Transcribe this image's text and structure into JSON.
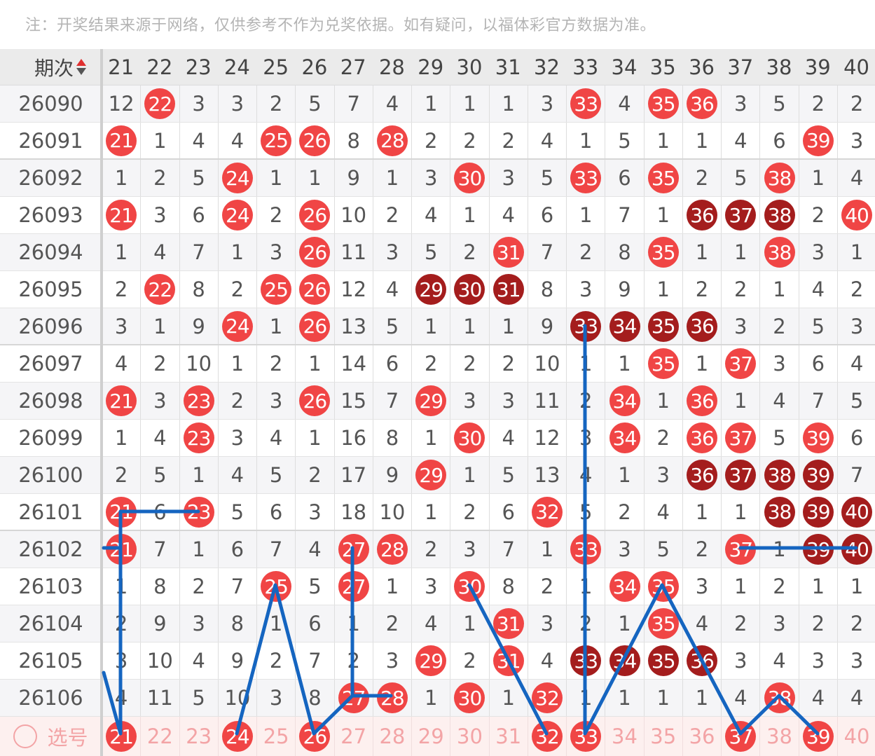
{
  "note": "注：开奖结果来源于网络，仅供参考不作为兑奖依据。如有疑问，以福体彩官方数据为准。",
  "header": {
    "issue_label": "期次",
    "sort_icon": "sort-up-down-icon",
    "columns": [
      "21",
      "22",
      "23",
      "24",
      "25",
      "26",
      "27",
      "28",
      "29",
      "30",
      "31",
      "32",
      "33",
      "34",
      "35",
      "36",
      "37",
      "38",
      "39",
      "40"
    ]
  },
  "colors": {
    "ball_red": "#f04545",
    "ball_dark": "#a41d1d",
    "annotation_line": "#1565c0",
    "select_text": "#f3a4a6"
  },
  "rows": [
    {
      "issue": "26090",
      "cells": [
        {
          "v": "12"
        },
        {
          "v": "22",
          "ball": "red"
        },
        {
          "v": "3"
        },
        {
          "v": "3"
        },
        {
          "v": "2"
        },
        {
          "v": "5"
        },
        {
          "v": "7"
        },
        {
          "v": "4"
        },
        {
          "v": "1"
        },
        {
          "v": "1"
        },
        {
          "v": "1"
        },
        {
          "v": "3"
        },
        {
          "v": "33",
          "ball": "red"
        },
        {
          "v": "4"
        },
        {
          "v": "35",
          "ball": "red"
        },
        {
          "v": "36",
          "ball": "red"
        },
        {
          "v": "3"
        },
        {
          "v": "5"
        },
        {
          "v": "2"
        },
        {
          "v": "2"
        }
      ]
    },
    {
      "issue": "26091",
      "cells": [
        {
          "v": "21",
          "ball": "red"
        },
        {
          "v": "1"
        },
        {
          "v": "4"
        },
        {
          "v": "4"
        },
        {
          "v": "25",
          "ball": "red"
        },
        {
          "v": "26",
          "ball": "red"
        },
        {
          "v": "8"
        },
        {
          "v": "28",
          "ball": "red"
        },
        {
          "v": "2"
        },
        {
          "v": "2"
        },
        {
          "v": "2"
        },
        {
          "v": "4"
        },
        {
          "v": "1"
        },
        {
          "v": "5"
        },
        {
          "v": "1"
        },
        {
          "v": "1"
        },
        {
          "v": "4"
        },
        {
          "v": "6"
        },
        {
          "v": "39",
          "ball": "red"
        },
        {
          "v": "3"
        }
      ]
    },
    {
      "issue": "26092",
      "cells": [
        {
          "v": "1"
        },
        {
          "v": "2"
        },
        {
          "v": "5"
        },
        {
          "v": "24",
          "ball": "red"
        },
        {
          "v": "1"
        },
        {
          "v": "1"
        },
        {
          "v": "9"
        },
        {
          "v": "1"
        },
        {
          "v": "3"
        },
        {
          "v": "30",
          "ball": "red"
        },
        {
          "v": "3"
        },
        {
          "v": "5"
        },
        {
          "v": "33",
          "ball": "red"
        },
        {
          "v": "6"
        },
        {
          "v": "35",
          "ball": "red"
        },
        {
          "v": "2"
        },
        {
          "v": "5"
        },
        {
          "v": "38",
          "ball": "red"
        },
        {
          "v": "1"
        },
        {
          "v": "4"
        }
      ]
    },
    {
      "issue": "26093",
      "cells": [
        {
          "v": "21",
          "ball": "red"
        },
        {
          "v": "3"
        },
        {
          "v": "6"
        },
        {
          "v": "24",
          "ball": "red"
        },
        {
          "v": "2"
        },
        {
          "v": "26",
          "ball": "red"
        },
        {
          "v": "10"
        },
        {
          "v": "2"
        },
        {
          "v": "4"
        },
        {
          "v": "1"
        },
        {
          "v": "4"
        },
        {
          "v": "6"
        },
        {
          "v": "1"
        },
        {
          "v": "7"
        },
        {
          "v": "1"
        },
        {
          "v": "36",
          "ball": "dark"
        },
        {
          "v": "37",
          "ball": "dark"
        },
        {
          "v": "38",
          "ball": "dark"
        },
        {
          "v": "2"
        },
        {
          "v": "40",
          "ball": "red"
        }
      ]
    },
    {
      "issue": "26094",
      "cells": [
        {
          "v": "1"
        },
        {
          "v": "4"
        },
        {
          "v": "7"
        },
        {
          "v": "1"
        },
        {
          "v": "3"
        },
        {
          "v": "26",
          "ball": "red"
        },
        {
          "v": "11"
        },
        {
          "v": "3"
        },
        {
          "v": "5"
        },
        {
          "v": "2"
        },
        {
          "v": "31",
          "ball": "red"
        },
        {
          "v": "7"
        },
        {
          "v": "2"
        },
        {
          "v": "8"
        },
        {
          "v": "35",
          "ball": "red"
        },
        {
          "v": "1"
        },
        {
          "v": "1"
        },
        {
          "v": "38",
          "ball": "red"
        },
        {
          "v": "3"
        },
        {
          "v": "1"
        }
      ]
    },
    {
      "issue": "26095",
      "cells": [
        {
          "v": "2"
        },
        {
          "v": "22",
          "ball": "red"
        },
        {
          "v": "8"
        },
        {
          "v": "2"
        },
        {
          "v": "25",
          "ball": "red"
        },
        {
          "v": "26",
          "ball": "red"
        },
        {
          "v": "12"
        },
        {
          "v": "4"
        },
        {
          "v": "29",
          "ball": "dark"
        },
        {
          "v": "30",
          "ball": "dark"
        },
        {
          "v": "31",
          "ball": "dark"
        },
        {
          "v": "8"
        },
        {
          "v": "3"
        },
        {
          "v": "9"
        },
        {
          "v": "1"
        },
        {
          "v": "2"
        },
        {
          "v": "2"
        },
        {
          "v": "1"
        },
        {
          "v": "4"
        },
        {
          "v": "2"
        }
      ]
    },
    {
      "issue": "26096",
      "cells": [
        {
          "v": "3"
        },
        {
          "v": "1"
        },
        {
          "v": "9"
        },
        {
          "v": "24",
          "ball": "red"
        },
        {
          "v": "1"
        },
        {
          "v": "26",
          "ball": "red"
        },
        {
          "v": "13"
        },
        {
          "v": "5"
        },
        {
          "v": "1"
        },
        {
          "v": "1"
        },
        {
          "v": "1"
        },
        {
          "v": "9"
        },
        {
          "v": "33",
          "ball": "dark"
        },
        {
          "v": "34",
          "ball": "dark"
        },
        {
          "v": "35",
          "ball": "dark"
        },
        {
          "v": "36",
          "ball": "dark"
        },
        {
          "v": "3"
        },
        {
          "v": "2"
        },
        {
          "v": "5"
        },
        {
          "v": "3"
        }
      ]
    },
    {
      "issue": "26097",
      "cells": [
        {
          "v": "4"
        },
        {
          "v": "2"
        },
        {
          "v": "10"
        },
        {
          "v": "1"
        },
        {
          "v": "2"
        },
        {
          "v": "1"
        },
        {
          "v": "14"
        },
        {
          "v": "6"
        },
        {
          "v": "2"
        },
        {
          "v": "2"
        },
        {
          "v": "2"
        },
        {
          "v": "10"
        },
        {
          "v": "1"
        },
        {
          "v": "1"
        },
        {
          "v": "35",
          "ball": "red"
        },
        {
          "v": "1"
        },
        {
          "v": "37",
          "ball": "red"
        },
        {
          "v": "3"
        },
        {
          "v": "6"
        },
        {
          "v": "4"
        }
      ]
    },
    {
      "issue": "26098",
      "cells": [
        {
          "v": "21",
          "ball": "red"
        },
        {
          "v": "3"
        },
        {
          "v": "23",
          "ball": "red"
        },
        {
          "v": "2"
        },
        {
          "v": "3"
        },
        {
          "v": "26",
          "ball": "red"
        },
        {
          "v": "15"
        },
        {
          "v": "7"
        },
        {
          "v": "29",
          "ball": "red"
        },
        {
          "v": "3"
        },
        {
          "v": "3"
        },
        {
          "v": "11"
        },
        {
          "v": "2"
        },
        {
          "v": "34",
          "ball": "red"
        },
        {
          "v": "1"
        },
        {
          "v": "36",
          "ball": "red"
        },
        {
          "v": "1"
        },
        {
          "v": "4"
        },
        {
          "v": "7"
        },
        {
          "v": "5"
        }
      ]
    },
    {
      "issue": "26099",
      "cells": [
        {
          "v": "1"
        },
        {
          "v": "4"
        },
        {
          "v": "23",
          "ball": "red"
        },
        {
          "v": "3"
        },
        {
          "v": "4"
        },
        {
          "v": "1"
        },
        {
          "v": "16"
        },
        {
          "v": "8"
        },
        {
          "v": "1"
        },
        {
          "v": "30",
          "ball": "red"
        },
        {
          "v": "4"
        },
        {
          "v": "12"
        },
        {
          "v": "3"
        },
        {
          "v": "34",
          "ball": "red"
        },
        {
          "v": "2"
        },
        {
          "v": "36",
          "ball": "red"
        },
        {
          "v": "37",
          "ball": "red"
        },
        {
          "v": "5"
        },
        {
          "v": "39",
          "ball": "red"
        },
        {
          "v": "6"
        }
      ]
    },
    {
      "issue": "26100",
      "cells": [
        {
          "v": "2"
        },
        {
          "v": "5"
        },
        {
          "v": "1"
        },
        {
          "v": "4"
        },
        {
          "v": "5"
        },
        {
          "v": "2"
        },
        {
          "v": "17"
        },
        {
          "v": "9"
        },
        {
          "v": "29",
          "ball": "red"
        },
        {
          "v": "1"
        },
        {
          "v": "5"
        },
        {
          "v": "13"
        },
        {
          "v": "4"
        },
        {
          "v": "1"
        },
        {
          "v": "3"
        },
        {
          "v": "36",
          "ball": "dark"
        },
        {
          "v": "37",
          "ball": "dark"
        },
        {
          "v": "38",
          "ball": "dark"
        },
        {
          "v": "39",
          "ball": "dark"
        },
        {
          "v": "7"
        }
      ]
    },
    {
      "issue": "26101",
      "cells": [
        {
          "v": "21",
          "ball": "red"
        },
        {
          "v": "6"
        },
        {
          "v": "23",
          "ball": "red"
        },
        {
          "v": "5"
        },
        {
          "v": "6"
        },
        {
          "v": "3"
        },
        {
          "v": "18"
        },
        {
          "v": "10"
        },
        {
          "v": "1"
        },
        {
          "v": "2"
        },
        {
          "v": "6"
        },
        {
          "v": "32",
          "ball": "red"
        },
        {
          "v": "5"
        },
        {
          "v": "2"
        },
        {
          "v": "4"
        },
        {
          "v": "1"
        },
        {
          "v": "1"
        },
        {
          "v": "38",
          "ball": "dark"
        },
        {
          "v": "39",
          "ball": "dark"
        },
        {
          "v": "40",
          "ball": "dark"
        }
      ]
    },
    {
      "issue": "26102",
      "cells": [
        {
          "v": "21",
          "ball": "red"
        },
        {
          "v": "7"
        },
        {
          "v": "1"
        },
        {
          "v": "6"
        },
        {
          "v": "7"
        },
        {
          "v": "4"
        },
        {
          "v": "27",
          "ball": "red"
        },
        {
          "v": "28",
          "ball": "red"
        },
        {
          "v": "2"
        },
        {
          "v": "3"
        },
        {
          "v": "7"
        },
        {
          "v": "1"
        },
        {
          "v": "33",
          "ball": "red"
        },
        {
          "v": "3"
        },
        {
          "v": "5"
        },
        {
          "v": "2"
        },
        {
          "v": "37",
          "ball": "red"
        },
        {
          "v": "1"
        },
        {
          "v": "39",
          "ball": "dark"
        },
        {
          "v": "40",
          "ball": "dark"
        }
      ]
    },
    {
      "issue": "26103",
      "cells": [
        {
          "v": "1"
        },
        {
          "v": "8"
        },
        {
          "v": "2"
        },
        {
          "v": "7"
        },
        {
          "v": "25",
          "ball": "red"
        },
        {
          "v": "5"
        },
        {
          "v": "27",
          "ball": "red"
        },
        {
          "v": "1"
        },
        {
          "v": "3"
        },
        {
          "v": "30",
          "ball": "red"
        },
        {
          "v": "8"
        },
        {
          "v": "2"
        },
        {
          "v": "1"
        },
        {
          "v": "34",
          "ball": "red"
        },
        {
          "v": "35",
          "ball": "red"
        },
        {
          "v": "3"
        },
        {
          "v": "1"
        },
        {
          "v": "2"
        },
        {
          "v": "1"
        },
        {
          "v": "1"
        }
      ]
    },
    {
      "issue": "26104",
      "cells": [
        {
          "v": "2"
        },
        {
          "v": "9"
        },
        {
          "v": "3"
        },
        {
          "v": "8"
        },
        {
          "v": "1"
        },
        {
          "v": "6"
        },
        {
          "v": "1"
        },
        {
          "v": "2"
        },
        {
          "v": "4"
        },
        {
          "v": "1"
        },
        {
          "v": "31",
          "ball": "red"
        },
        {
          "v": "3"
        },
        {
          "v": "2"
        },
        {
          "v": "1"
        },
        {
          "v": "35",
          "ball": "red"
        },
        {
          "v": "4"
        },
        {
          "v": "2"
        },
        {
          "v": "3"
        },
        {
          "v": "2"
        },
        {
          "v": "2"
        }
      ]
    },
    {
      "issue": "26105",
      "cells": [
        {
          "v": "3"
        },
        {
          "v": "10"
        },
        {
          "v": "4"
        },
        {
          "v": "9"
        },
        {
          "v": "2"
        },
        {
          "v": "7"
        },
        {
          "v": "2"
        },
        {
          "v": "3"
        },
        {
          "v": "29",
          "ball": "red"
        },
        {
          "v": "2"
        },
        {
          "v": "31",
          "ball": "red"
        },
        {
          "v": "4"
        },
        {
          "v": "33",
          "ball": "dark"
        },
        {
          "v": "34",
          "ball": "dark"
        },
        {
          "v": "35",
          "ball": "dark"
        },
        {
          "v": "36",
          "ball": "dark"
        },
        {
          "v": "3"
        },
        {
          "v": "4"
        },
        {
          "v": "3"
        },
        {
          "v": "3"
        }
      ]
    },
    {
      "issue": "26106",
      "cells": [
        {
          "v": "4"
        },
        {
          "v": "11"
        },
        {
          "v": "5"
        },
        {
          "v": "10"
        },
        {
          "v": "3"
        },
        {
          "v": "8"
        },
        {
          "v": "27",
          "ball": "red"
        },
        {
          "v": "28",
          "ball": "red"
        },
        {
          "v": "1"
        },
        {
          "v": "30",
          "ball": "red"
        },
        {
          "v": "1"
        },
        {
          "v": "32",
          "ball": "red"
        },
        {
          "v": "1"
        },
        {
          "v": "1"
        },
        {
          "v": "1"
        },
        {
          "v": "1"
        },
        {
          "v": "4"
        },
        {
          "v": "38",
          "ball": "red"
        },
        {
          "v": "4"
        },
        {
          "v": "4"
        }
      ]
    }
  ],
  "select_row": {
    "label": "选号",
    "icon": "circle-radio-icon",
    "numbers": [
      "21",
      "22",
      "23",
      "24",
      "25",
      "26",
      "27",
      "28",
      "29",
      "30",
      "31",
      "32",
      "33",
      "34",
      "35",
      "36",
      "37",
      "38",
      "39",
      "40"
    ],
    "selected": [
      "21",
      "24",
      "26",
      "32",
      "33",
      "37",
      "39"
    ]
  }
}
